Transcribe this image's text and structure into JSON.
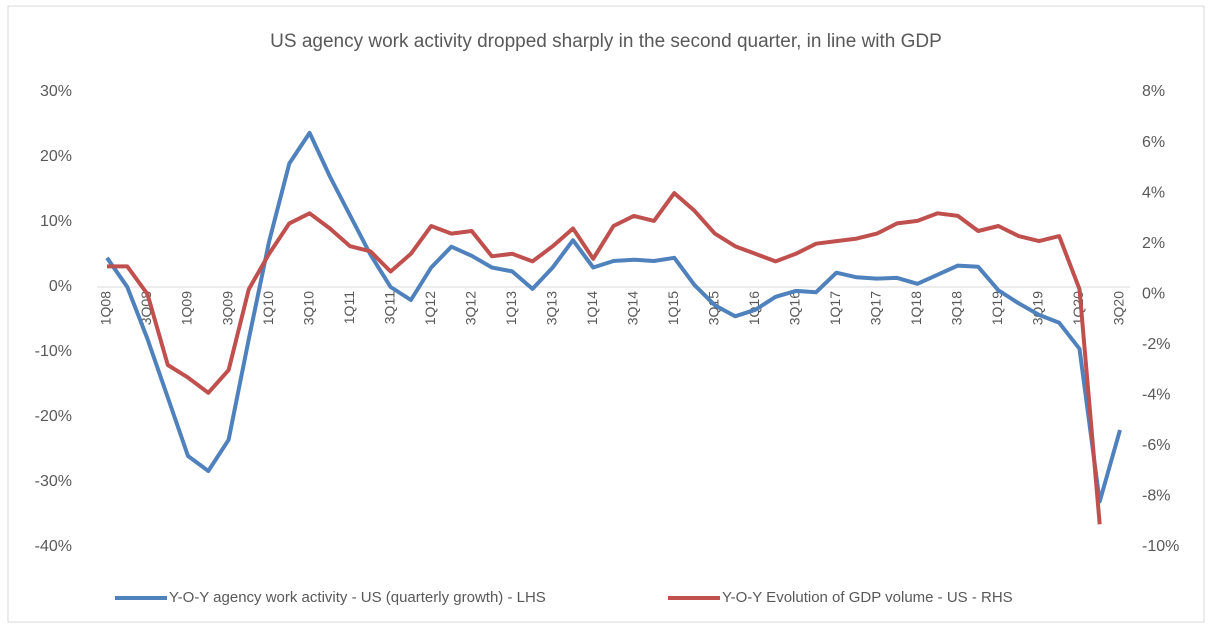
{
  "chart_data": {
    "type": "line",
    "title": "US agency work activity dropped sharply in the second quarter, in line with GDP",
    "categories": [
      "1Q08",
      null,
      "3Q08",
      null,
      "1Q09",
      null,
      "3Q09",
      null,
      "1Q10",
      null,
      "3Q10",
      null,
      "1Q11",
      null,
      "3Q11",
      null,
      "1Q12",
      null,
      "3Q12",
      null,
      "1Q13",
      null,
      "3Q13",
      null,
      "1Q14",
      null,
      "3Q14",
      null,
      "1Q15",
      null,
      "3Q15",
      null,
      "1Q16",
      null,
      "3Q16",
      null,
      "1Q17",
      null,
      "3Q17",
      null,
      "1Q18",
      null,
      "3Q18",
      null,
      "1Q19",
      null,
      "3Q19",
      null,
      "1Q20",
      null,
      "3Q20"
    ],
    "series": [
      {
        "name": "Y-O-Y agency work activity - US (quarterly growth) - LHS",
        "color": "#4f81bd",
        "values": [
          4.5,
          0,
          -8,
          -17,
          -26,
          -28.3,
          -23.5,
          -8,
          7,
          19,
          23.7,
          17,
          11,
          5,
          0,
          -2,
          3,
          6.2,
          4.8,
          3,
          2.4,
          -0.3,
          3,
          7.2,
          3,
          4,
          4.2,
          4,
          4.5,
          0.3,
          -2.8,
          -4.5,
          -3.5,
          -1.5,
          -0.6,
          -0.8,
          2.2,
          1.5,
          1.3,
          1.4,
          0.5,
          1.9,
          3.3,
          3.1,
          -0.5,
          -2.5,
          -4.3,
          -5.5,
          -9.5,
          -33,
          -22
        ]
      },
      {
        "name": "Y-O-Y Evolution of GDP volume - US - RHS",
        "color": "#c0504d",
        "axis": "y2",
        "values": [
          1.1,
          1.1,
          0,
          -2.8,
          -3.3,
          -3.9,
          -3,
          0.2,
          1.6,
          2.8,
          3.2,
          2.6,
          1.9,
          1.7,
          0.9,
          1.6,
          2.7,
          2.4,
          2.5,
          1.5,
          1.6,
          1.3,
          1.9,
          2.6,
          1.4,
          2.7,
          3.1,
          2.9,
          4.0,
          3.3,
          2.4,
          1.9,
          1.6,
          1.3,
          1.6,
          2.0,
          2.1,
          2.2,
          2.4,
          2.8,
          2.9,
          3.2,
          3.1,
          2.5,
          2.7,
          2.3,
          2.1,
          2.3,
          0.2,
          -9.1,
          null
        ]
      }
    ],
    "ylim": [
      -40,
      30
    ],
    "yticks": [
      {
        "value": -40,
        "label": "-40%"
      },
      {
        "value": -30,
        "label": "-30%"
      },
      {
        "value": -20,
        "label": "-20%"
      },
      {
        "value": -10,
        "label": "-10%"
      },
      {
        "value": 0,
        "label": "0%"
      },
      {
        "value": 10,
        "label": "10%"
      },
      {
        "value": 20,
        "label": "20%"
      },
      {
        "value": 30,
        "label": "30%"
      }
    ],
    "y2lim": [
      -10,
      8
    ],
    "y2ticks": [
      {
        "value": -10,
        "label": "-10%"
      },
      {
        "value": -8,
        "label": "-8%"
      },
      {
        "value": -6,
        "label": "-6%"
      },
      {
        "value": -4,
        "label": "-4%"
      },
      {
        "value": -2,
        "label": "-2%"
      },
      {
        "value": 0,
        "label": "0%"
      },
      {
        "value": 2,
        "label": "2%"
      },
      {
        "value": 4,
        "label": "4%"
      },
      {
        "value": 6,
        "label": "6%"
      },
      {
        "value": 8,
        "label": "8%"
      }
    ],
    "grid": false,
    "legend": "bottom"
  }
}
